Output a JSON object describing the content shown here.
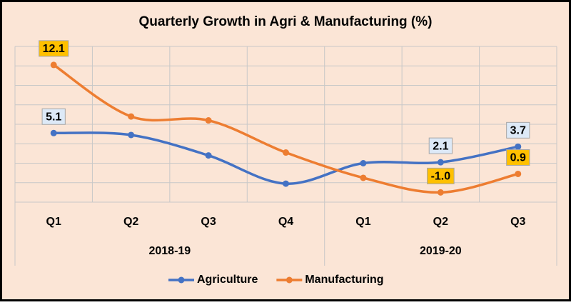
{
  "chart_data": {
    "type": "line",
    "title": "Quarterly Growth in Agri & Manufacturing (%)",
    "categories": [
      "Q1",
      "Q2",
      "Q3",
      "Q4",
      "Q1",
      "Q2",
      "Q3"
    ],
    "groups": [
      {
        "label": "2018-19",
        "count": 4
      },
      {
        "label": "2019-20",
        "count": 3
      }
    ],
    "series": [
      {
        "name": "Agriculture",
        "color": "#4472c4",
        "values": [
          5.1,
          4.9,
          2.8,
          -0.1,
          2.0,
          2.1,
          3.7
        ],
        "value_labels": [
          "5.1",
          null,
          null,
          null,
          null,
          "2.1",
          "3.7"
        ],
        "label_fill": "#dde9f7"
      },
      {
        "name": "Manufacturing",
        "color": "#ed7d31",
        "values": [
          12.1,
          6.8,
          6.4,
          3.1,
          0.5,
          -1.0,
          0.9
        ],
        "value_labels": [
          "12.1",
          null,
          null,
          null,
          null,
          "-1.0",
          "0.9"
        ],
        "label_fill": "#ffc000"
      }
    ],
    "ylim": [
      -2,
      14
    ],
    "yticks": [
      -2,
      0,
      2,
      4,
      6,
      8,
      10,
      12,
      14
    ],
    "grid": true,
    "smooth": true,
    "legend": "bottom"
  }
}
